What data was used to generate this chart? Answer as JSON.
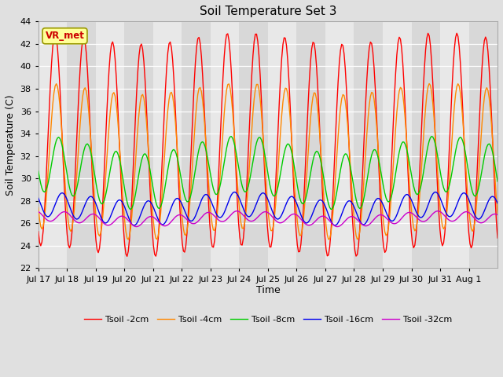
{
  "title": "Soil Temperature Set 3",
  "xlabel": "Time",
  "ylabel": "Soil Temperature (C)",
  "ylim": [
    22,
    44
  ],
  "yticks": [
    22,
    24,
    26,
    28,
    30,
    32,
    34,
    36,
    38,
    40,
    42,
    44
  ],
  "bg_color": "#e0e0e0",
  "plot_bg_color": "#e8e8e8",
  "stripe_light": "#e8e8e8",
  "stripe_dark": "#d8d8d8",
  "legend_entries": [
    "Tsoil -2cm",
    "Tsoil -4cm",
    "Tsoil -8cm",
    "Tsoil -16cm",
    "Tsoil -32cm"
  ],
  "line_colors": [
    "#ff0000",
    "#ff8800",
    "#00cc00",
    "#0000ee",
    "#cc00cc"
  ],
  "annotation_text": "VR_met",
  "annotation_color": "#cc0000",
  "annotation_bg": "#ffff99",
  "annotation_border": "#999900",
  "tick_labels": [
    "Jul 17",
    "Jul 18",
    "Jul 19",
    "Jul 20",
    "Jul 21",
    "Jul 22",
    "Jul 23",
    "Jul 24",
    "Jul 25",
    "Jul 26",
    "Jul 27",
    "Jul 28",
    "Jul 29",
    "Jul 30",
    "Jul 31",
    "Aug 1"
  ],
  "linewidth": 1.0
}
